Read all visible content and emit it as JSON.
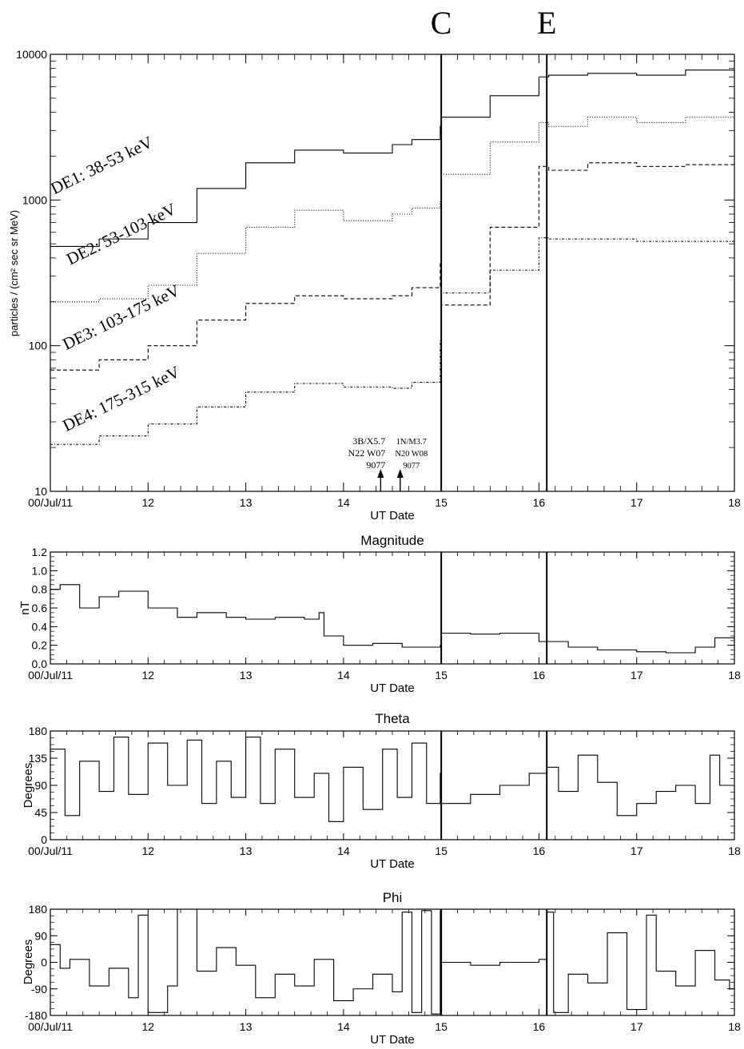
{
  "event_markers": [
    {
      "label": "C",
      "x": 15.0
    },
    {
      "label": "E",
      "x": 16.08
    }
  ],
  "flare_annotations": [
    {
      "x": 14.38,
      "lines": [
        "3B/X5.7",
        "N22 W07",
        "9077"
      ]
    },
    {
      "x": 14.58,
      "lines": [
        "1N/M3.7",
        "N20 W08",
        "9077"
      ]
    }
  ],
  "x_axis": {
    "ticks": [
      {
        "v": 11,
        "label": "00/Jul/11"
      },
      {
        "v": 12,
        "label": "12"
      },
      {
        "v": 13,
        "label": "13"
      },
      {
        "v": 14,
        "label": "14"
      },
      {
        "v": 15,
        "label": "15"
      },
      {
        "v": 16,
        "label": "16"
      },
      {
        "v": 17,
        "label": "17"
      },
      {
        "v": 18,
        "label": "18"
      }
    ],
    "label": "UT Date",
    "range": [
      11,
      18
    ]
  },
  "chart_data": [
    {
      "type": "line",
      "title": "",
      "xlabel": "UT Date",
      "ylabel": "particles / (cm² sec sr MeV)",
      "yscale": "log",
      "ylim": [
        10,
        10000
      ],
      "yticks": [
        {
          "v": 10,
          "label": "10"
        },
        {
          "v": 100,
          "label": "100"
        },
        {
          "v": 1000,
          "label": "1000"
        },
        {
          "v": 10000,
          "label": "10000"
        }
      ],
      "x": [
        11.0,
        11.5,
        12.0,
        12.5,
        13.0,
        13.5,
        14.0,
        14.5,
        14.7,
        14.99,
        15.0,
        15.5,
        16.0,
        16.1,
        16.5,
        17.0,
        17.5,
        18.0
      ],
      "series": [
        {
          "name": "DE1: 38-53 keV",
          "dash": "",
          "label_at": [
            11.55,
            1600
          ],
          "values": [
            480,
            540,
            700,
            1200,
            1800,
            2200,
            2100,
            2400,
            2600,
            3200,
            3700,
            5200,
            7000,
            7200,
            7400,
            7200,
            7800,
            7500
          ]
        },
        {
          "name": "DE2: 53-103 keV",
          "dash": "1 2",
          "label_at": [
            11.75,
            540
          ],
          "values": [
            200,
            210,
            260,
            430,
            650,
            850,
            720,
            800,
            880,
            980,
            1500,
            2500,
            3400,
            3200,
            3700,
            3400,
            3700,
            3600
          ]
        },
        {
          "name": "DE3: 103-175 keV",
          "dash": "5 3",
          "label_at": [
            11.75,
            145
          ],
          "values": [
            68,
            80,
            100,
            150,
            195,
            220,
            210,
            220,
            250,
            370,
            190,
            650,
            1700,
            1600,
            1800,
            1700,
            1750,
            1700
          ]
        },
        {
          "name": "DE4: 175-315 keV",
          "dash": "3 2 1 2",
          "label_at": [
            11.75,
            40
          ],
          "values": [
            21,
            24,
            29,
            38,
            48,
            55,
            52,
            51,
            56,
            110,
            230,
            330,
            550,
            540,
            540,
            520,
            520,
            510
          ]
        }
      ],
      "grid": false
    },
    {
      "type": "line",
      "title": "Magnitude",
      "xlabel": "UT Date",
      "ylabel": "nT",
      "ylim": [
        0.0,
        1.2
      ],
      "yticks": [
        {
          "v": 0.0,
          "label": "0.0"
        },
        {
          "v": 0.2,
          "label": "0.2"
        },
        {
          "v": 0.4,
          "label": "0.4"
        },
        {
          "v": 0.6,
          "label": "0.6"
        },
        {
          "v": 0.8,
          "label": "0.8"
        },
        {
          "v": 1.0,
          "label": "1.0"
        },
        {
          "v": 1.2,
          "label": "1.2"
        }
      ],
      "x": [
        11.0,
        11.1,
        11.3,
        11.5,
        11.7,
        12.0,
        12.3,
        12.5,
        12.8,
        13.0,
        13.3,
        13.6,
        13.75,
        13.8,
        14.0,
        14.3,
        14.6,
        14.99,
        15.0,
        15.3,
        15.6,
        16.0,
        16.3,
        16.6,
        17.0,
        17.3,
        17.6,
        17.8,
        18.0
      ],
      "values": [
        0.8,
        0.85,
        0.6,
        0.72,
        0.78,
        0.6,
        0.5,
        0.55,
        0.5,
        0.48,
        0.5,
        0.48,
        0.55,
        0.3,
        0.2,
        0.22,
        0.18,
        0.2,
        0.33,
        0.32,
        0.33,
        0.24,
        0.18,
        0.15,
        0.13,
        0.12,
        0.18,
        0.28,
        0.2
      ],
      "grid": false
    },
    {
      "type": "line",
      "title": "Theta",
      "xlabel": "UT Date",
      "ylabel": "Degrees",
      "ylim": [
        0,
        180
      ],
      "yticks": [
        {
          "v": 0,
          "label": "0"
        },
        {
          "v": 45,
          "label": "45"
        },
        {
          "v": 90,
          "label": "90"
        },
        {
          "v": 135,
          "label": "135"
        },
        {
          "v": 180,
          "label": "180"
        }
      ],
      "x": [
        11.0,
        11.15,
        11.3,
        11.5,
        11.65,
        11.8,
        12.0,
        12.2,
        12.4,
        12.55,
        12.7,
        12.85,
        13.0,
        13.15,
        13.3,
        13.5,
        13.7,
        13.85,
        14.0,
        14.2,
        14.4,
        14.55,
        14.7,
        14.85,
        14.99,
        15.0,
        15.3,
        15.6,
        15.9,
        16.08,
        16.2,
        16.4,
        16.6,
        16.8,
        17.0,
        17.2,
        17.4,
        17.6,
        17.75,
        17.85,
        18.0
      ],
      "values": [
        150,
        40,
        130,
        80,
        170,
        75,
        160,
        90,
        165,
        60,
        130,
        70,
        170,
        60,
        150,
        70,
        110,
        30,
        120,
        50,
        150,
        70,
        160,
        60,
        110,
        60,
        75,
        90,
        110,
        120,
        80,
        140,
        95,
        40,
        60,
        80,
        90,
        60,
        140,
        90,
        60
      ],
      "grid": false
    },
    {
      "type": "line",
      "title": "Phi",
      "xlabel": "UT Date",
      "ylabel": "Degrees",
      "ylim": [
        -180,
        180
      ],
      "yticks": [
        {
          "v": -180,
          "label": "-180"
        },
        {
          "v": -90,
          "label": "-90"
        },
        {
          "v": 0,
          "label": "0"
        },
        {
          "v": 90,
          "label": "90"
        },
        {
          "v": 180,
          "label": "180"
        }
      ],
      "x": [
        11.0,
        11.1,
        11.2,
        11.4,
        11.6,
        11.8,
        11.9,
        12.0,
        12.2,
        12.3,
        12.5,
        12.7,
        12.9,
        13.1,
        13.3,
        13.5,
        13.7,
        13.9,
        14.1,
        14.3,
        14.5,
        14.6,
        14.7,
        14.8,
        14.9,
        14.99,
        15.0,
        15.3,
        15.6,
        16.0,
        16.08,
        16.15,
        16.3,
        16.5,
        16.7,
        16.9,
        17.1,
        17.2,
        17.4,
        17.6,
        17.8,
        17.95,
        18.0
      ],
      "values": [
        60,
        -20,
        10,
        -80,
        -20,
        -120,
        160,
        -170,
        -80,
        180,
        -30,
        50,
        -10,
        -120,
        -40,
        -80,
        10,
        -130,
        -90,
        -40,
        -100,
        170,
        -170,
        175,
        -175,
        175,
        0,
        -10,
        0,
        10,
        170,
        -170,
        -40,
        -70,
        100,
        -160,
        160,
        -30,
        -80,
        40,
        -60,
        -90,
        175
      ],
      "grid": false
    }
  ]
}
